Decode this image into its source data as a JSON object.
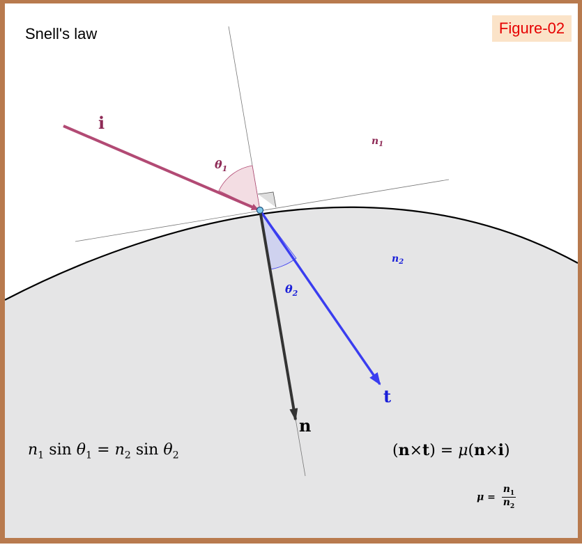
{
  "title": "Snell's law",
  "figure_tag": "Figure-02",
  "colors": {
    "frame": "#b87a4e",
    "incident": "#b24a74",
    "transmitted": "#3a3df0",
    "normal": "#333333",
    "medium2_fill": "#e5e5e6",
    "tag_bg": "#fbe3c8",
    "tag_text": "#e60000",
    "incidence_point": "#7ec8ea"
  },
  "labels": {
    "incident": "i",
    "transmitted": "t",
    "normal": "n",
    "theta1": "θ",
    "theta1_sub": "1",
    "theta2": "θ",
    "theta2_sub": "2",
    "n1": "n",
    "n1_sub": "1",
    "n2": "n",
    "n2_sub": "2"
  },
  "formulas": {
    "snell": {
      "n1": "n",
      "n1_sub": "1",
      "sin": "sin",
      "theta1": "θ",
      "theta1_sub": "1",
      "eq": "=",
      "n2": "n",
      "n2_sub": "2",
      "sin2": "sin",
      "theta2": "θ",
      "theta2_sub": "2"
    },
    "vector": {
      "lhs_open": "(",
      "n": "n",
      "cross": "×",
      "t": "t",
      "lhs_close": ")",
      "eq": "=",
      "mu": "μ",
      "rhs_open": "(",
      "n2": "n",
      "cross2": "×",
      "i": "i",
      "rhs_close": ")"
    },
    "mu_def": {
      "mu": "μ",
      "eq": "=",
      "num": "n",
      "num_sub": "1",
      "den": "n",
      "den_sub": "2"
    }
  }
}
